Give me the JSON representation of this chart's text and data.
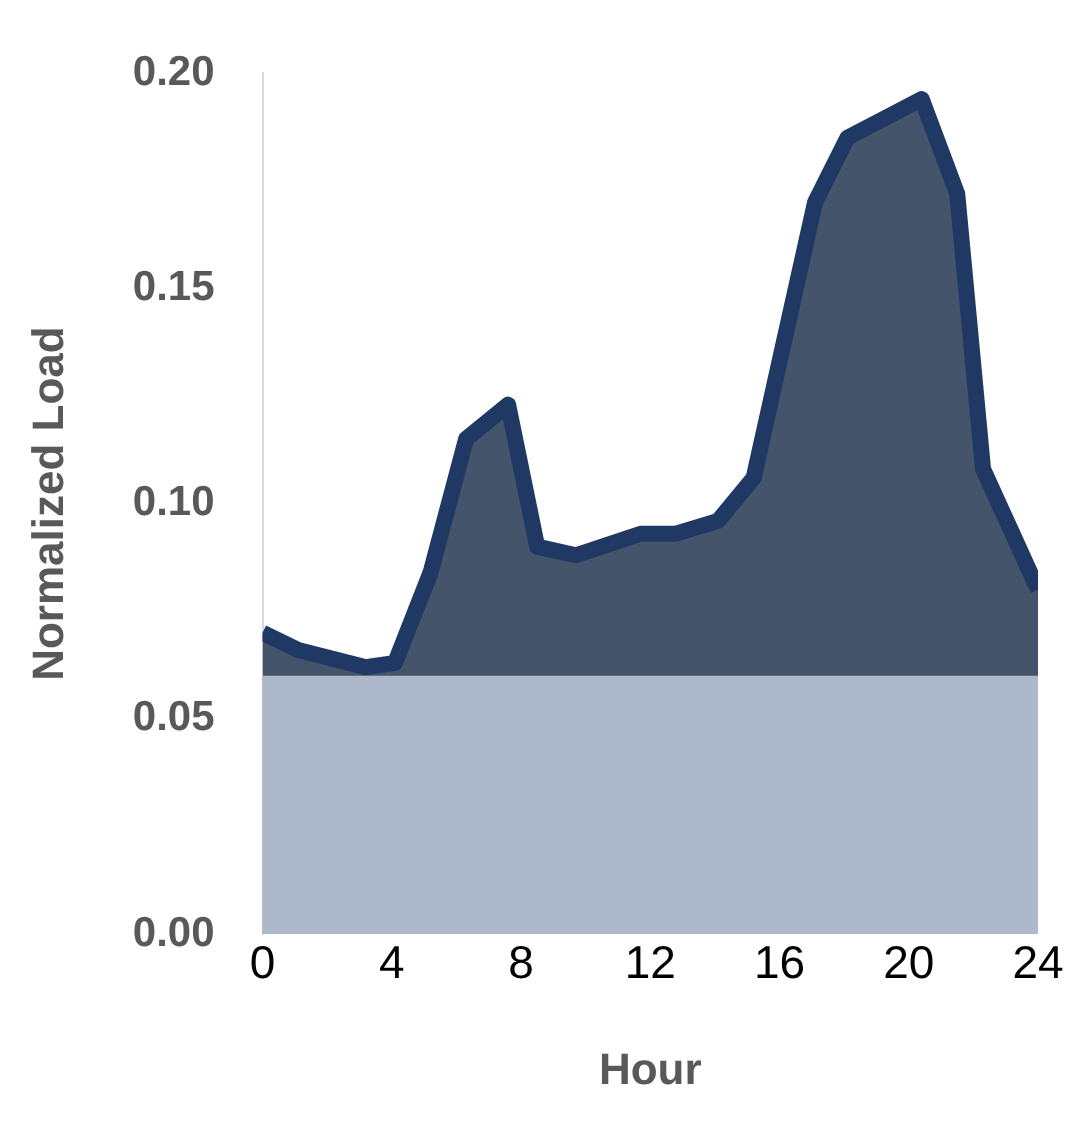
{
  "chart_data": {
    "type": "area",
    "xlabel": "Hour",
    "ylabel": "Normalized Load",
    "x": [
      0,
      1.1,
      3.2,
      4.1,
      5.2,
      6.3,
      7.6,
      8.5,
      9.7,
      11.7,
      12.8,
      14.1,
      15.2,
      16,
      17.1,
      18.1,
      20.4,
      21.5,
      22.3,
      24
    ],
    "series": [
      {
        "color": "#203864",
        "values": [
          0.07,
          0.066,
          0.062,
          0.063,
          0.084,
          0.115,
          0.123,
          0.09,
          0.088,
          0.093,
          0.093,
          0.096,
          0.106,
          0.133,
          0.17,
          0.185,
          0.194,
          0.172,
          0.108,
          0.08
        ]
      }
    ],
    "xlim": [
      0,
      24
    ],
    "xticks": [
      0,
      4,
      8,
      12,
      16,
      20,
      24
    ],
    "ylim": [
      0,
      0.2
    ],
    "yticks": [
      {
        "value": 0,
        "label": "0.00"
      },
      {
        "value": 0.05,
        "label": "0.05"
      },
      {
        "value": 0.1,
        "label": "0.10"
      },
      {
        "value": 0.15,
        "label": "0.15"
      },
      {
        "value": 0.2,
        "label": "0.20"
      }
    ],
    "bands": [
      {
        "axis": "y",
        "from": 0,
        "to": 0.06,
        "color": "#adb9ca"
      }
    ],
    "grid": false,
    "legend": false,
    "marker": "none",
    "line_style": "solid"
  }
}
